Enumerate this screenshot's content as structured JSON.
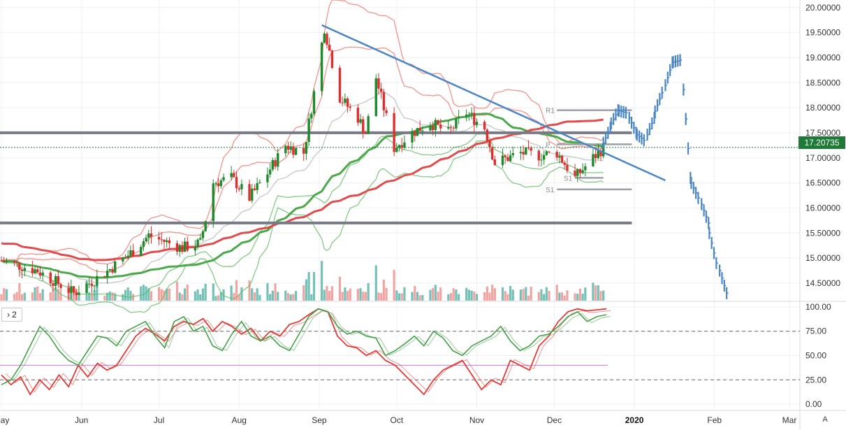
{
  "chart_data": [
    {
      "type": "candlestick",
      "title": "",
      "ylim": [
        14.15,
        20.15
      ],
      "y_ticks": [
        "20.00000",
        "19.50000",
        "19.00000",
        "18.50000",
        "18.00000",
        "17.50000",
        "17.00000",
        "16.50000",
        "16.00000",
        "15.50000",
        "15.00000",
        "14.50000"
      ],
      "x_ticks": [
        "May",
        "Jun",
        "Jul",
        "Aug",
        "Sep",
        "Oct",
        "Nov",
        "Dec",
        "2020",
        "Feb",
        "Mar"
      ],
      "last_price": "17.20735",
      "grid": true,
      "horizontal_levels": [
        17.5,
        15.7
      ],
      "pivot_levels": [
        {
          "label": "R1",
          "value": 17.95
        },
        {
          "label": "P",
          "value": 17.27
        },
        {
          "label": "S1",
          "value": 16.37
        },
        {
          "label": "S1",
          "value": 16.6
        }
      ],
      "trendline": [
        {
          "x": "2019-09-02",
          "y": 19.65
        },
        {
          "x": "2020-01-13",
          "y": 16.55
        }
      ],
      "projection_bars": {
        "color": "#4a86c5",
        "x": [
          "2019-12-20",
          "2019-12-23",
          "2019-12-26",
          "2019-12-30",
          "2020-01-02",
          "2020-01-06",
          "2020-01-09",
          "2020-01-13",
          "2020-01-16",
          "2020-01-20",
          "2020-01-23",
          "2020-01-27",
          "2020-01-30",
          "2020-02-03"
        ],
        "y": [
          17.6,
          17.95,
          17.9,
          17.5,
          17.35,
          17.8,
          18.3,
          18.9,
          18.95,
          16.6,
          16.2,
          15.7,
          14.9,
          14.3
        ]
      },
      "volume_colors": {
        "up": "#74c1b7",
        "down": "#f1a5a3"
      },
      "colors": {
        "up": "#1c8b2b",
        "down": "#e02e2e",
        "bollinger": "#ef6f66",
        "keltner": "#5cb85c",
        "ma_long": "#e14b4b",
        "ma_green": "#4ba84b",
        "sma_grey": "#cccccc",
        "hline": "#787b86",
        "price_line": "#1e7a36"
      }
    },
    {
      "type": "line",
      "title": "",
      "pane_label": "2",
      "ylim": [
        -5,
        105
      ],
      "y_ticks": [
        "100.00",
        "75.00",
        "50.00",
        "25.00",
        "0.00"
      ],
      "dashed_levels": [
        75,
        25
      ],
      "purple_level": 40,
      "series": [
        {
          "color": "#e53935",
          "values": [
            30,
            20,
            28,
            10,
            25,
            15,
            30,
            18,
            40,
            28,
            42,
            35,
            40,
            55,
            70,
            78,
            72,
            65,
            80,
            85,
            82,
            88,
            75,
            85,
            80,
            72,
            78,
            65,
            75,
            70,
            82,
            85,
            92,
            98,
            95,
            70,
            60,
            58,
            50,
            55,
            45,
            40,
            30,
            20,
            10,
            25,
            35,
            40,
            45,
            30,
            15,
            25,
            20,
            45,
            40,
            35,
            60,
            70,
            85,
            95,
            98,
            96,
            97,
            98
          ]
        },
        {
          "color": "#43a047",
          "values": [
            20,
            25,
            40,
            60,
            80,
            70,
            55,
            45,
            40,
            55,
            70,
            68,
            60,
            75,
            80,
            85,
            70,
            58,
            85,
            90,
            75,
            80,
            60,
            55,
            72,
            85,
            70,
            65,
            70,
            60,
            55,
            72,
            90,
            98,
            95,
            80,
            72,
            75,
            70,
            68,
            50,
            55,
            62,
            70,
            60,
            75,
            68,
            55,
            50,
            60,
            65,
            70,
            80,
            65,
            55,
            60,
            70,
            72,
            80,
            90,
            95,
            85,
            90,
            92
          ]
        }
      ]
    }
  ],
  "ui": {
    "pane_badge": "2",
    "auto_label": "A"
  }
}
